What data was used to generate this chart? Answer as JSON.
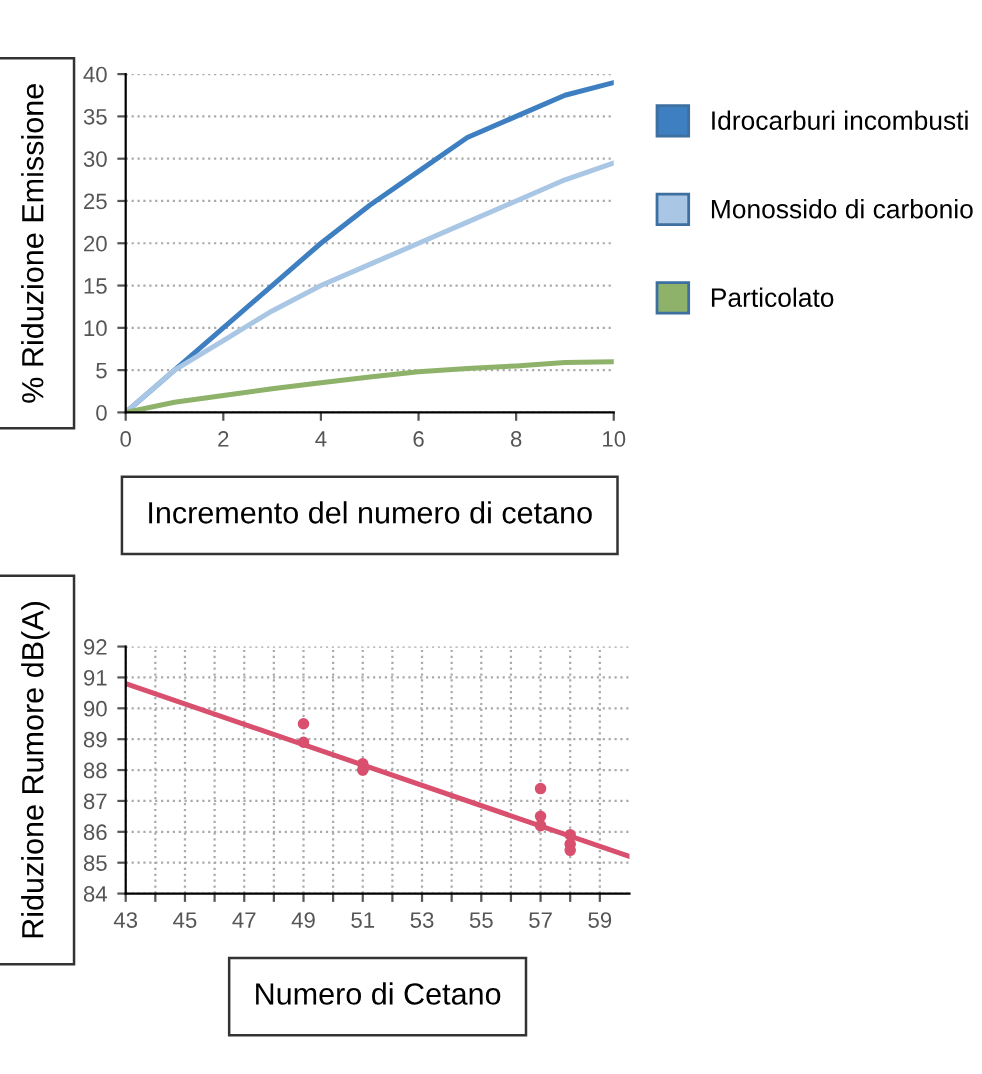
{
  "chart_data": [
    {
      "type": "line",
      "ylabel": "% Riduzione Emissione",
      "xlabel": "Incremento del numero di cetano",
      "x": [
        0,
        1,
        2,
        3,
        4,
        5,
        6,
        7,
        8,
        9,
        10
      ],
      "xlim": [
        0,
        10
      ],
      "xticks": [
        0,
        2,
        4,
        6,
        8,
        10
      ],
      "ylim": [
        0,
        40
      ],
      "yticks": [
        0,
        5,
        10,
        15,
        20,
        25,
        30,
        35,
        40
      ],
      "grid": "y",
      "legend": "right",
      "marker": "none",
      "line_style": "solid",
      "series": [
        {
          "name": "Idrocarburi incombusti",
          "color": "#3d7fc1",
          "values": [
            0,
            5,
            10,
            15,
            20,
            24.5,
            28.5,
            32.5,
            35,
            37.5,
            39
          ]
        },
        {
          "name": "Monossido di carbonio",
          "color": "#a9c6e4",
          "values": [
            0,
            5,
            8.5,
            12,
            15,
            17.5,
            20,
            22.5,
            25,
            27.5,
            29.5
          ]
        },
        {
          "name": "Particolato",
          "color": "#8fb26a",
          "values": [
            0,
            1.2,
            2,
            2.8,
            3.5,
            4.2,
            4.8,
            5.2,
            5.5,
            5.9,
            6
          ]
        }
      ]
    },
    {
      "type": "scatter",
      "ylabel": "Riduzione Rumore dB(A)",
      "xlabel": "Numero di Cetano",
      "xlim": [
        43,
        60
      ],
      "xticks": [
        43,
        {
          "value": 44,
          "label": null
        },
        45,
        {
          "value": 46,
          "label": null
        },
        47,
        {
          "value": 48,
          "label": null
        },
        49,
        {
          "value": 50,
          "label": null
        },
        51,
        {
          "value": 52,
          "label": null
        },
        53,
        {
          "value": 54,
          "label": null
        },
        55,
        {
          "value": 56,
          "label": null
        },
        57,
        {
          "value": 58,
          "label": null
        },
        59
      ],
      "ylim": [
        84,
        92
      ],
      "yticks": [
        84,
        85,
        86,
        87,
        88,
        89,
        90,
        91,
        92
      ],
      "grid": true,
      "series": [
        {
          "type": "scatter",
          "marker": "circle",
          "color": "#d9506e",
          "x": [
            49,
            49,
            51,
            51,
            57,
            57,
            57,
            58,
            58,
            58
          ],
          "values": [
            89.5,
            88.9,
            88.2,
            88.0,
            87.4,
            86.5,
            86.2,
            85.9,
            85.6,
            85.4
          ]
        },
        {
          "type": "line",
          "color": "#d9506e",
          "x": [
            43,
            60
          ],
          "values": [
            90.8,
            85.2
          ]
        }
      ]
    }
  ]
}
